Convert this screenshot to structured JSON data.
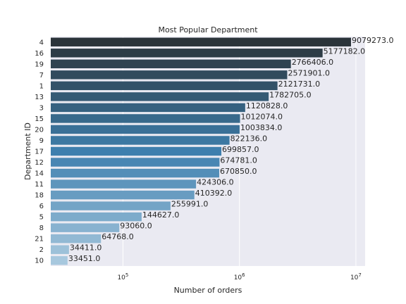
{
  "chart_data": {
    "type": "bar",
    "orientation": "horizontal",
    "title": "Most Popular Department",
    "xlabel": "Number of orders",
    "ylabel": "Department ID",
    "x_scale": "log",
    "xlim": [
      24000,
      12000000
    ],
    "x_ticks": [
      {
        "value": 100000,
        "base": "10",
        "exp": "5"
      },
      {
        "value": 1000000,
        "base": "10",
        "exp": "6"
      },
      {
        "value": 10000000,
        "base": "10",
        "exp": "7"
      }
    ],
    "grid": true,
    "categories": [
      "4",
      "16",
      "19",
      "7",
      "1",
      "13",
      "3",
      "15",
      "20",
      "9",
      "17",
      "12",
      "14",
      "11",
      "18",
      "6",
      "5",
      "8",
      "21",
      "2",
      "10"
    ],
    "values": [
      9079273.0,
      5177182.0,
      2766406.0,
      2571901.0,
      2121731.0,
      1782705.0,
      1120828.0,
      1012074.0,
      1003834.0,
      822136.0,
      699857.0,
      674781.0,
      670850.0,
      424306.0,
      410392.0,
      255991.0,
      144627.0,
      93060.0,
      64768.0,
      34411.0,
      33451.0
    ],
    "value_labels": [
      "9079273.0",
      "5177182.0",
      "2766406.0",
      "2571901.0",
      "2121731.0",
      "1782705.0",
      "1120828.0",
      "1012074.0",
      "1003834.0",
      "822136.0",
      "699857.0",
      "674781.0",
      "670850.0",
      "424306.0",
      "410392.0",
      "255991.0",
      "144627.0",
      "93060.0",
      "64768.0",
      "34411.0",
      "33451.0"
    ],
    "colors": {
      "background": "#eaeaf2",
      "grid": "#ffffff",
      "palette_dark": "#2b343a",
      "palette_mid": "#3e7fae",
      "palette_light": "#a7c8de"
    }
  }
}
